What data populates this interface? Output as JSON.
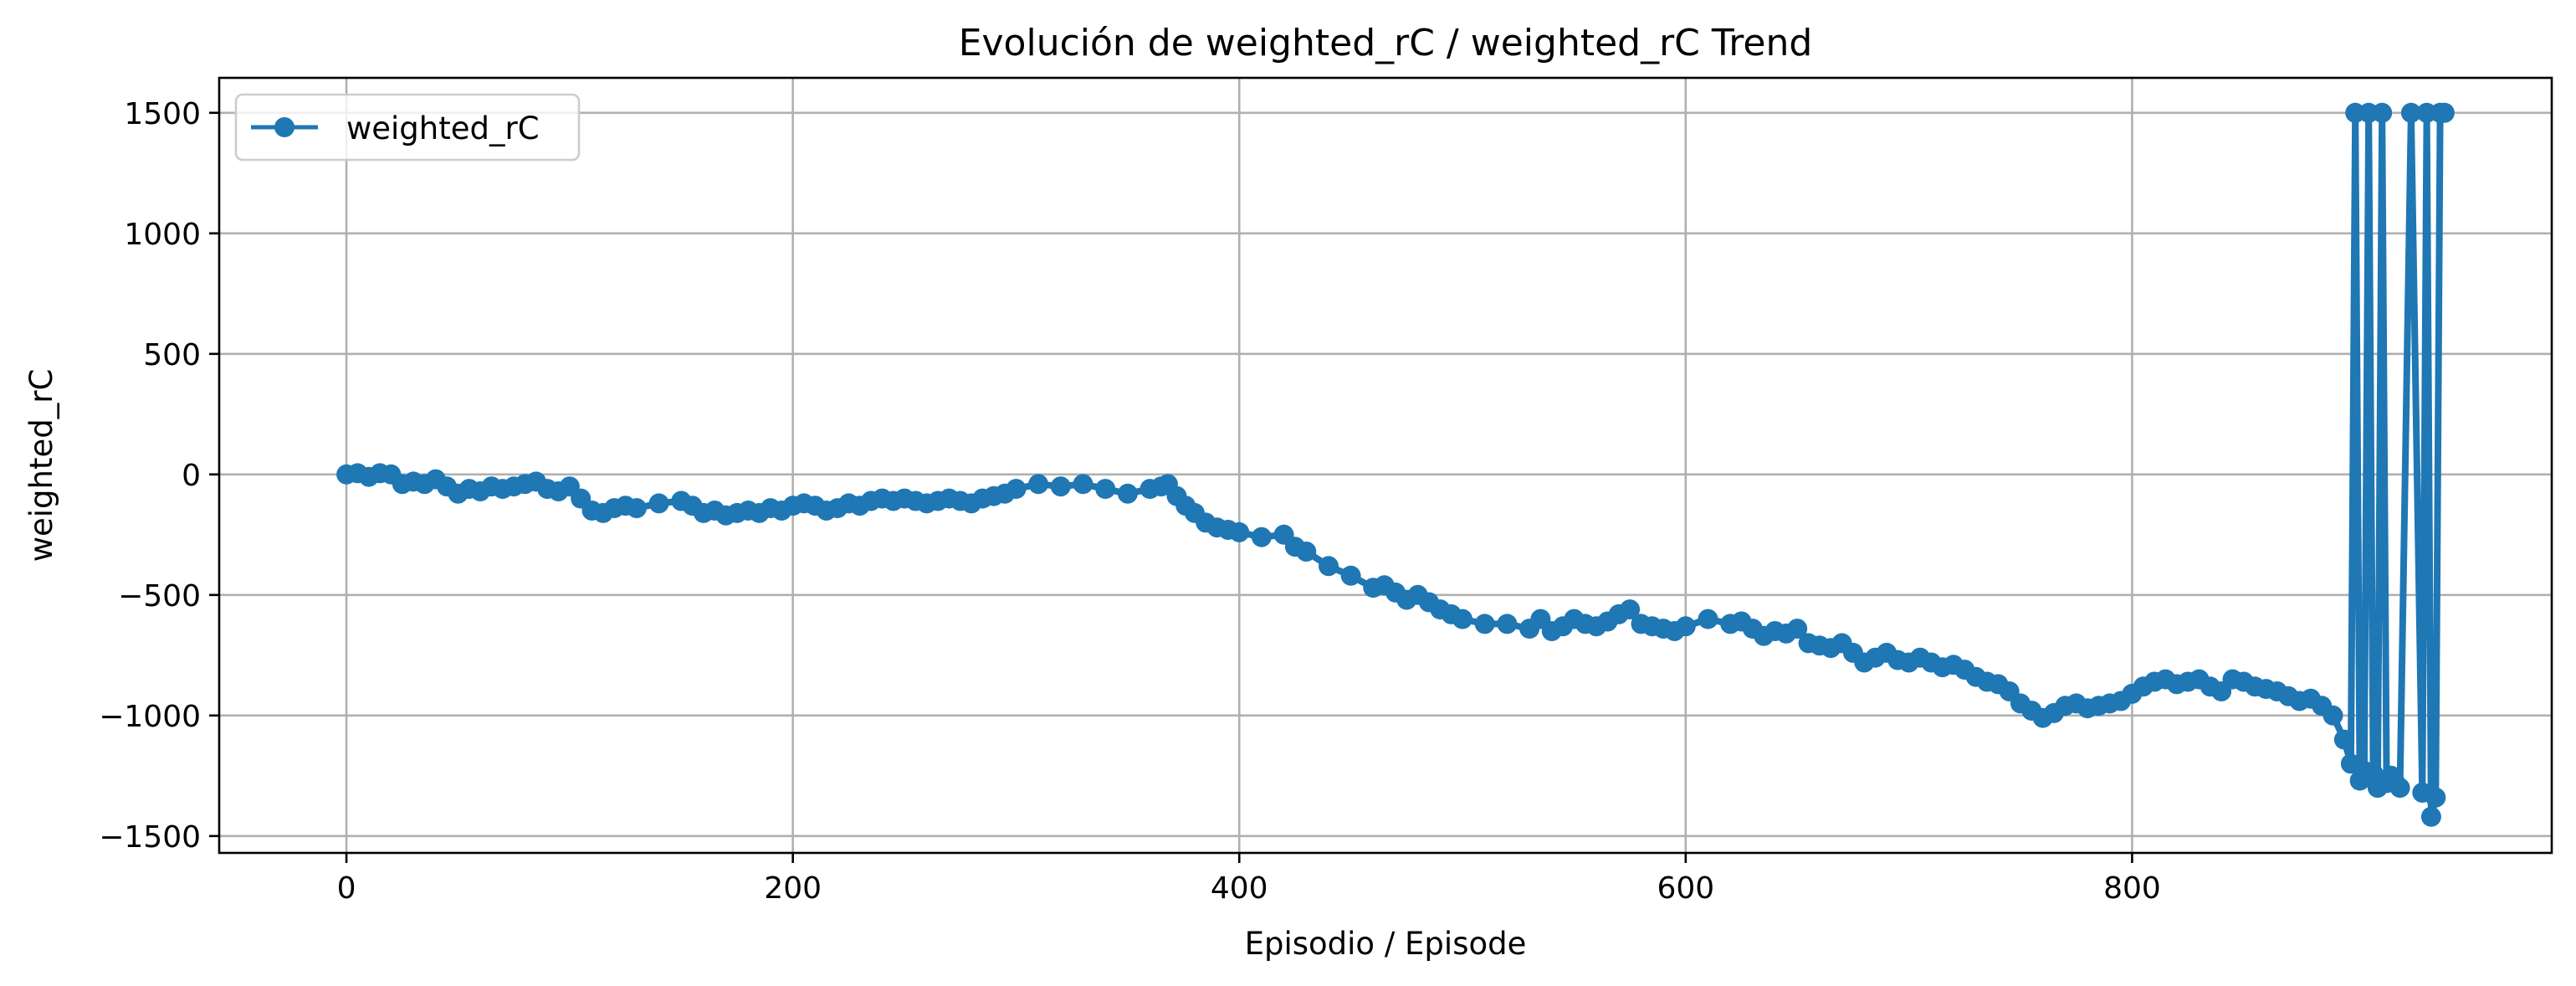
{
  "chart_data": {
    "type": "line",
    "title": "Evolución de weighted_rC / weighted_rC Trend",
    "xlabel": "Episodio / Episode",
    "ylabel": "weighted_rC",
    "xlim": [
      -57,
      988
    ],
    "ylim": [
      -1570,
      1645
    ],
    "xticks": [
      0,
      200,
      400,
      600,
      800
    ],
    "yticks": [
      -1500,
      -1000,
      -500,
      0,
      500,
      1000,
      1500
    ],
    "xtick_labels": [
      "0",
      "200",
      "400",
      "600",
      "800"
    ],
    "ytick_labels": [
      "−1500",
      "−1000",
      "−500",
      "0",
      "500",
      "1000",
      "1500"
    ],
    "grid": true,
    "legend_position": "upper-left",
    "colors": {
      "series": "#1f77b4",
      "grid": "#b0b0b0",
      "frame": "#000000"
    },
    "series": [
      {
        "name": "weighted_rC",
        "marker": "circle",
        "x": [
          0,
          5,
          10,
          15,
          20,
          25,
          30,
          35,
          40,
          45,
          50,
          55,
          60,
          65,
          70,
          75,
          80,
          85,
          90,
          95,
          100,
          105,
          110,
          115,
          120,
          125,
          130,
          140,
          150,
          155,
          160,
          165,
          170,
          175,
          180,
          185,
          190,
          195,
          200,
          205,
          210,
          215,
          220,
          225,
          230,
          235,
          240,
          245,
          250,
          255,
          260,
          265,
          270,
          275,
          280,
          285,
          290,
          295,
          300,
          310,
          320,
          330,
          340,
          350,
          360,
          365,
          368,
          372,
          376,
          380,
          385,
          390,
          395,
          400,
          410,
          420,
          425,
          430,
          440,
          450,
          460,
          465,
          470,
          475,
          480,
          485,
          490,
          495,
          500,
          510,
          520,
          530,
          535,
          540,
          545,
          550,
          555,
          560,
          565,
          570,
          575,
          580,
          585,
          590,
          595,
          600,
          610,
          620,
          625,
          630,
          635,
          640,
          645,
          650,
          655,
          660,
          665,
          670,
          675,
          680,
          685,
          690,
          695,
          700,
          705,
          710,
          715,
          720,
          725,
          730,
          735,
          740,
          745,
          750,
          755,
          760,
          765,
          770,
          775,
          780,
          785,
          790,
          795,
          800,
          805,
          810,
          815,
          820,
          825,
          830,
          835,
          840,
          845,
          850,
          855,
          860,
          865,
          870,
          875,
          880,
          885,
          890,
          895,
          898,
          900,
          902,
          904,
          906,
          908,
          910,
          912,
          914,
          916,
          918,
          920,
          925,
          930,
          932,
          934,
          936,
          938,
          940
        ],
        "y": [
          0,
          5,
          -10,
          5,
          0,
          -40,
          -30,
          -40,
          -20,
          -50,
          -80,
          -60,
          -70,
          -50,
          -60,
          -50,
          -40,
          -30,
          -60,
          -70,
          -50,
          -100,
          -150,
          -160,
          -140,
          -130,
          -140,
          -120,
          -110,
          -130,
          -160,
          -150,
          -170,
          -160,
          -150,
          -160,
          -140,
          -150,
          -130,
          -120,
          -130,
          -150,
          -140,
          -120,
          -130,
          -110,
          -100,
          -110,
          -100,
          -110,
          -120,
          -110,
          -100,
          -110,
          -120,
          -100,
          -90,
          -80,
          -60,
          -40,
          -50,
          -40,
          -60,
          -80,
          -60,
          -50,
          -40,
          -90,
          -130,
          -160,
          -200,
          -220,
          -230,
          -240,
          -260,
          -250,
          -300,
          -320,
          -380,
          -420,
          -470,
          -460,
          -490,
          -520,
          -500,
          -530,
          -560,
          -580,
          -600,
          -620,
          -620,
          -640,
          -600,
          -650,
          -630,
          -600,
          -620,
          -630,
          -610,
          -580,
          -560,
          -620,
          -630,
          -640,
          -650,
          -630,
          -600,
          -620,
          -610,
          -640,
          -670,
          -650,
          -660,
          -640,
          -700,
          -710,
          -720,
          -700,
          -740,
          -780,
          -760,
          -740,
          -770,
          -780,
          -760,
          -780,
          -800,
          -790,
          -810,
          -840,
          -860,
          -870,
          -900,
          -950,
          -980,
          -1010,
          -990,
          -960,
          -950,
          -970,
          -960,
          -950,
          -940,
          -910,
          -880,
          -860,
          -850,
          -870,
          -860,
          -850,
          -880,
          -900,
          -850,
          -860,
          -880,
          -890,
          -900,
          -920,
          -940,
          -930,
          -960,
          -1000,
          -1100,
          -1200,
          1500,
          -1270,
          -1230,
          1500,
          -1240,
          -1300,
          1500,
          -1280,
          -1250,
          -1280,
          -1300,
          1500,
          -1320,
          1500,
          -1420,
          -1340,
          1500,
          1500
        ]
      }
    ]
  }
}
